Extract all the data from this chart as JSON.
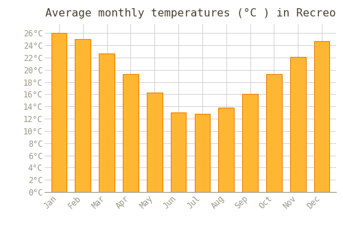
{
  "title": "Average monthly temperatures (°C ) in Recreo",
  "months": [
    "Jan",
    "Feb",
    "Mar",
    "Apr",
    "May",
    "Jun",
    "Jul",
    "Aug",
    "Sep",
    "Oct",
    "Nov",
    "Dec"
  ],
  "values": [
    26,
    25,
    22.7,
    19.3,
    16.3,
    13,
    12.8,
    13.8,
    16.1,
    19.3,
    22.1,
    24.7
  ],
  "bar_color": "#FFB733",
  "bar_edge_color": "#F08000",
  "background_color": "#FFFFFF",
  "plot_bg_color": "#FFFFFF",
  "grid_color": "#CCCCCC",
  "text_color": "#999988",
  "title_color": "#444433",
  "ylim": [
    0,
    27.5
  ],
  "yticks": [
    0,
    2,
    4,
    6,
    8,
    10,
    12,
    14,
    16,
    18,
    20,
    22,
    24,
    26
  ],
  "ytick_labels": [
    "0°C",
    "2°C",
    "4°C",
    "6°C",
    "8°C",
    "10°C",
    "12°C",
    "14°C",
    "16°C",
    "18°C",
    "20°C",
    "22°C",
    "24°C",
    "26°C"
  ],
  "title_fontsize": 11.5,
  "tick_fontsize": 8.5,
  "font_family": "monospace",
  "bar_width": 0.65
}
